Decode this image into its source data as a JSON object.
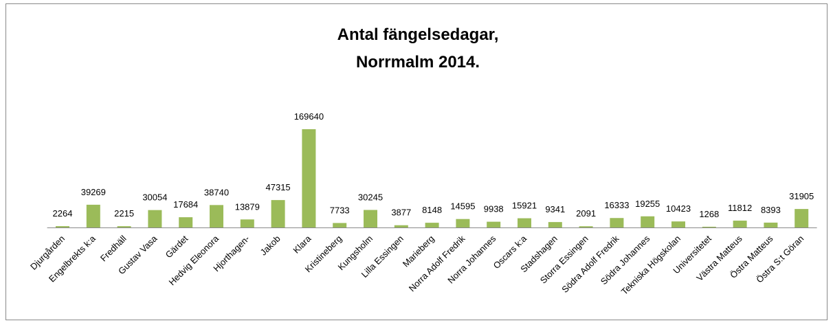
{
  "chart_data": {
    "type": "bar",
    "title": [
      "Antal fängelsedagar,",
      "Norrmalm 2014."
    ],
    "categories": [
      "Djurgården",
      "Engelbrekts k:a",
      "Fredhäll",
      "Gustav Vasa",
      "Gärdet",
      "Hedvig Eleonora",
      "Hjorthagen-",
      "Jakob",
      "Klara",
      "Kristineberg",
      "Kungsholm",
      "Lilla Essingen",
      "Marieberg",
      "Norra Adolf Fredrik",
      "Norra Johannes",
      "Oscars k:a",
      "Stadshagen",
      "Storra Essingen",
      "Södra Adolf Fredrik",
      "Södra Johannes",
      "Tekniska Högskolan",
      "Universitetet",
      "Västra Matteus",
      "Östra Matteus",
      "Östra S:t Göran"
    ],
    "values": [
      2264,
      39269,
      2215,
      30054,
      17684,
      38740,
      13879,
      47315,
      169640,
      7733,
      30245,
      3877,
      8148,
      14595,
      9938,
      15921,
      9341,
      2091,
      16333,
      19255,
      10423,
      1268,
      11812,
      8393,
      31905
    ],
    "color": "#9bbb59"
  }
}
